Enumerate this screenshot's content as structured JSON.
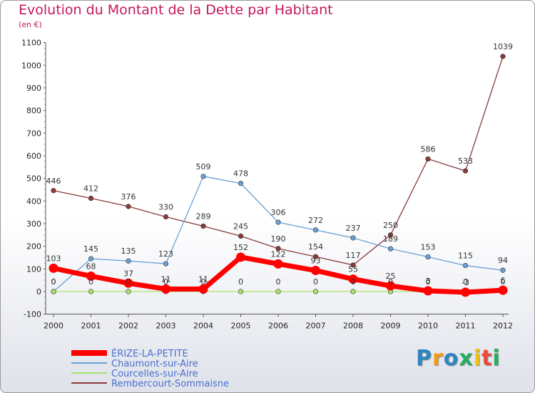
{
  "chart_data": {
    "type": "line",
    "title": "Evolution du Montant de la Dette par Habitant",
    "unit": "(en €)",
    "x": [
      "2000",
      "2001",
      "2002",
      "2003",
      "2004",
      "2005",
      "2006",
      "2007",
      "2008",
      "2009",
      "2010",
      "2011",
      "2012"
    ],
    "yticks": [
      "1100",
      "1000",
      "900",
      "800",
      "700",
      "600",
      "500",
      "400",
      "300",
      "200",
      "100",
      "0",
      "-100"
    ],
    "ylim": [
      -100,
      1100
    ],
    "grid": false,
    "legend_placement": "bottom-left",
    "series": [
      {
        "name": "ÉRIZE-LA-PETITE",
        "color": "#ff0000",
        "values": [
          103,
          68,
          37,
          11,
          11,
          152,
          122,
          93,
          55,
          25,
          3,
          -3,
          6
        ],
        "labels": [
          "103",
          "68",
          "37",
          "11",
          "11",
          "152",
          "122",
          "93",
          "55",
          "25",
          "3",
          "-3",
          "6"
        ]
      },
      {
        "name": "Chaumont-sur-Aire",
        "color": "#6aa0d4",
        "values": [
          0,
          145,
          135,
          123,
          509,
          478,
          306,
          272,
          237,
          189,
          153,
          115,
          94
        ],
        "labels": [
          "0",
          "145",
          "135",
          "123",
          "509",
          "478",
          "306",
          "272",
          "237",
          "189",
          "153",
          "115",
          "94"
        ]
      },
      {
        "name": "Courcelles-sur-Aire",
        "color": "#a9e36b",
        "values": [
          0,
          0,
          0,
          0,
          0,
          0,
          0,
          0,
          0,
          0,
          0,
          0,
          0
        ],
        "labels": [
          "0",
          "0",
          "0",
          "0",
          "0",
          "0",
          "0",
          "0",
          "0",
          "0",
          "0",
          "0",
          "0"
        ]
      },
      {
        "name": "Rembercourt-Sommaisne",
        "color": "#8b3a3a",
        "values": [
          446,
          412,
          376,
          330,
          289,
          245,
          190,
          154,
          117,
          250,
          586,
          533,
          1039
        ],
        "labels": [
          "446",
          "412",
          "376",
          "330",
          "289",
          "245",
          "190",
          "154",
          "117",
          "250",
          "586",
          "533",
          "1039"
        ]
      }
    ]
  },
  "branding": {
    "logo": [
      "P",
      "r",
      "o",
      "x",
      "i",
      "t",
      "i"
    ],
    "logo_colors": [
      "#2e86c1",
      "#f39c12",
      "#2e86c1",
      "#27ae60",
      "#f1c40f",
      "#e74c3c",
      "#27ae60"
    ]
  }
}
